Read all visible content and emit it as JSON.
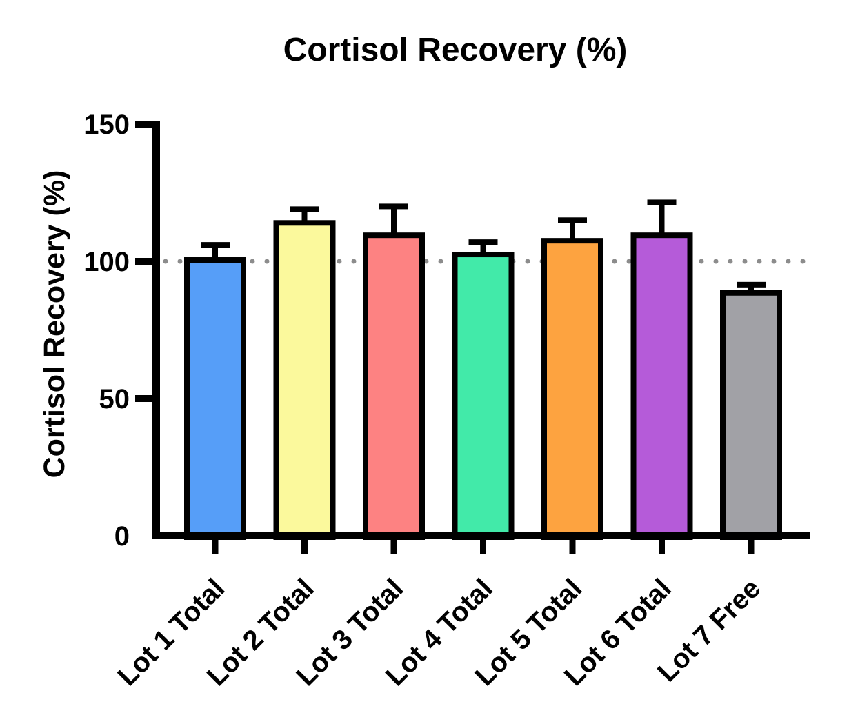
{
  "chart_data": {
    "type": "bar",
    "title": "Cortisol Recovery (%)",
    "xlabel": "",
    "ylabel": "Cortisol Recovery (%)",
    "ylim": [
      0,
      150
    ],
    "yticks": [
      0,
      50,
      100,
      150
    ],
    "grid": false,
    "legend": null,
    "reference_line": {
      "y": 100,
      "style": "dotted",
      "color": "#8C8C8C"
    },
    "error_bars": "upper-only with caps",
    "categories": [
      "Lot 1 Total",
      "Lot 2 Total",
      "Lot 3 Total",
      "Lot 4 Total",
      "Lot 5 Total",
      "Lot 6 Total",
      "Lot 7 Free"
    ],
    "series": [
      {
        "name": "Cortisol Recovery (%)",
        "values": [
          100.5,
          114,
          109.5,
          102.5,
          107.5,
          109.5,
          88.5
        ],
        "errors_upper": [
          5.5,
          5,
          10.5,
          4.5,
          7.5,
          12,
          3
        ]
      }
    ],
    "bar_colors": [
      "#569EF8",
      "#FBF99C",
      "#FD8282",
      "#42EAA9",
      "#FDA340",
      "#B55BD9",
      "#A1A1A6"
    ],
    "bar_border_color": "#000000",
    "axis_color": "#000000"
  }
}
